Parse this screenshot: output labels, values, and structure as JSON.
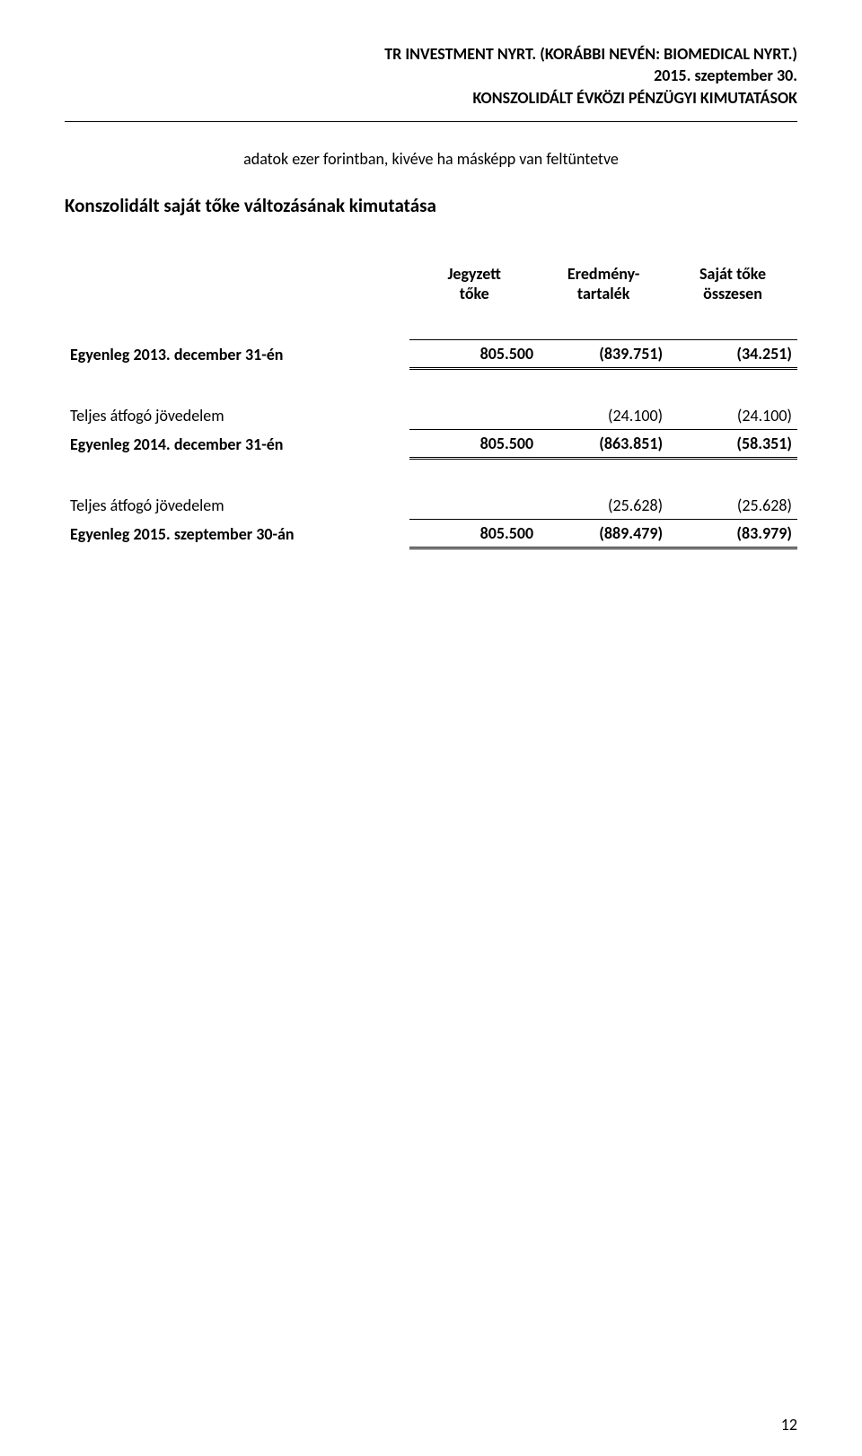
{
  "header": {
    "line1": "TR INVESTMENT NYRT. (KORÁBBI NEVÉN: BIOMEDICAL NYRT.)",
    "line2": "2015. szeptember 30.",
    "line3": "KONSZOLIDÁLT ÉVKÖZI PÉNZÜGYI KIMUTATÁSOK"
  },
  "note": "adatok ezer forintban, kivéve ha másképp van feltüntetve",
  "section_title": "Konszolidált saját tőke változásának kimutatása",
  "columns": {
    "c1_l1": "Jegyzett",
    "c1_l2": "tőke",
    "c2_l1": "Eredmény-",
    "c2_l2": "tartalék",
    "c3_l1": "Saját tőke",
    "c3_l2": "összesen"
  },
  "rows": {
    "bal2013": {
      "label": "Egyenleg 2013. december 31-én",
      "c1": "805.500",
      "c2": "(839.751)",
      "c3": "(34.251)"
    },
    "tci1": {
      "label": "Teljes átfogó jövedelem",
      "c1": "",
      "c2": "(24.100)",
      "c3": "(24.100)"
    },
    "bal2014": {
      "label": "Egyenleg 2014. december 31-én",
      "c1": "805.500",
      "c2": "(863.851)",
      "c3": "(58.351)"
    },
    "tci2": {
      "label": "Teljes átfogó jövedelem",
      "c1": "",
      "c2": "(25.628)",
      "c3": "(25.628)"
    },
    "bal2015": {
      "label": "Egyenleg 2015. szeptember 30-án",
      "c1": "805.500",
      "c2": "(889.479)",
      "c3": "(83.979)"
    }
  },
  "page_number": "12",
  "styling": {
    "font_family": "Calibri",
    "text_color": "#000000",
    "background_color": "#ffffff",
    "rule_color": "#000000",
    "header_fontsize": 18,
    "note_fontsize": 18,
    "section_title_fontsize": 21,
    "table_fontsize": 18,
    "page_number_fontsize": 18
  }
}
